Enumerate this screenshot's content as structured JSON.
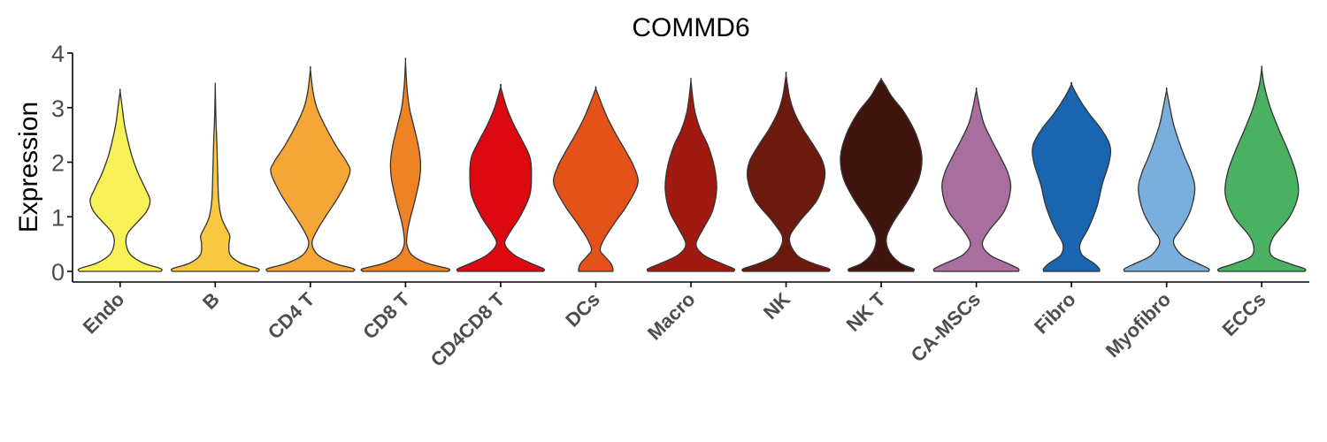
{
  "chart_data": {
    "type": "violin",
    "title": "COMMD6",
    "xlabel": "",
    "ylabel": "Expression",
    "ylim": [
      -0.2,
      4.05
    ],
    "yticks": [
      0,
      1,
      2,
      3,
      4
    ],
    "grid": false,
    "legend": "none",
    "categories": [
      "Endo",
      "B",
      "CD4 T",
      "CD8 T",
      "CD4CD8 T",
      "DCs",
      "Macro",
      "NK",
      "NK T",
      "CA-MSCs",
      "Fibro",
      "Myofibro",
      "ECCs"
    ],
    "series": [
      {
        "category": "Endo",
        "color": "#F8F057",
        "max": 3.3,
        "profile": [
          [
            0,
            0.95
          ],
          [
            0.05,
            0.95
          ],
          [
            0.15,
            0.55
          ],
          [
            0.3,
            0.25
          ],
          [
            0.5,
            0.14
          ],
          [
            0.7,
            0.18
          ],
          [
            0.9,
            0.4
          ],
          [
            1.1,
            0.62
          ],
          [
            1.3,
            0.7
          ],
          [
            1.5,
            0.6
          ],
          [
            1.8,
            0.42
          ],
          [
            2.1,
            0.28
          ],
          [
            2.4,
            0.18
          ],
          [
            2.7,
            0.1
          ],
          [
            3.0,
            0.05
          ],
          [
            3.3,
            0
          ]
        ]
      },
      {
        "category": "B",
        "color": "#F7C840",
        "max": 3.4,
        "profile": [
          [
            0,
            1.0
          ],
          [
            0.05,
            1.0
          ],
          [
            0.15,
            0.6
          ],
          [
            0.3,
            0.35
          ],
          [
            0.5,
            0.32
          ],
          [
            0.65,
            0.34
          ],
          [
            0.8,
            0.25
          ],
          [
            1.0,
            0.14
          ],
          [
            1.3,
            0.08
          ],
          [
            1.7,
            0.06
          ],
          [
            2.0,
            0.05
          ],
          [
            2.3,
            0.04
          ],
          [
            2.7,
            0.02
          ],
          [
            3.0,
            0.01
          ],
          [
            3.4,
            0
          ]
        ]
      },
      {
        "category": "CD4 T",
        "color": "#F4A736",
        "max": 3.7,
        "profile": [
          [
            0,
            1.0
          ],
          [
            0.05,
            1.0
          ],
          [
            0.15,
            0.55
          ],
          [
            0.3,
            0.18
          ],
          [
            0.5,
            0.04
          ],
          [
            0.7,
            0.12
          ],
          [
            1.0,
            0.35
          ],
          [
            1.4,
            0.68
          ],
          [
            1.8,
            0.92
          ],
          [
            2.0,
            0.85
          ],
          [
            2.3,
            0.6
          ],
          [
            2.7,
            0.32
          ],
          [
            3.0,
            0.15
          ],
          [
            3.3,
            0.06
          ],
          [
            3.7,
            0
          ]
        ]
      },
      {
        "category": "CD8 T",
        "color": "#EE8326",
        "max": 3.85,
        "profile": [
          [
            0,
            1.0
          ],
          [
            0.05,
            1.0
          ],
          [
            0.15,
            0.5
          ],
          [
            0.3,
            0.15
          ],
          [
            0.5,
            0.03
          ],
          [
            0.75,
            0.05
          ],
          [
            1.0,
            0.12
          ],
          [
            1.3,
            0.22
          ],
          [
            1.7,
            0.33
          ],
          [
            2.0,
            0.35
          ],
          [
            2.3,
            0.3
          ],
          [
            2.7,
            0.18
          ],
          [
            3.0,
            0.09
          ],
          [
            3.4,
            0.03
          ],
          [
            3.85,
            0
          ]
        ]
      },
      {
        "category": "CD4CD8 T",
        "color": "#DC0A10",
        "max": 3.38,
        "profile": [
          [
            0,
            1.0
          ],
          [
            0.05,
            1.0
          ],
          [
            0.15,
            0.7
          ],
          [
            0.3,
            0.32
          ],
          [
            0.5,
            0.1
          ],
          [
            0.7,
            0.2
          ],
          [
            1.0,
            0.45
          ],
          [
            1.4,
            0.68
          ],
          [
            1.8,
            0.72
          ],
          [
            2.1,
            0.68
          ],
          [
            2.4,
            0.5
          ],
          [
            2.7,
            0.3
          ],
          [
            3.0,
            0.14
          ],
          [
            3.38,
            0
          ]
        ]
      },
      {
        "category": "DCs",
        "color": "#E35219",
        "max": 3.35,
        "profile": [
          [
            0,
            0.4
          ],
          [
            0.05,
            0.4
          ],
          [
            0.15,
            0.35
          ],
          [
            0.3,
            0.18
          ],
          [
            0.4,
            0.1
          ],
          [
            0.6,
            0.2
          ],
          [
            0.9,
            0.45
          ],
          [
            1.2,
            0.72
          ],
          [
            1.6,
            0.98
          ],
          [
            1.9,
            0.9
          ],
          [
            2.2,
            0.7
          ],
          [
            2.5,
            0.48
          ],
          [
            2.8,
            0.28
          ],
          [
            3.1,
            0.12
          ],
          [
            3.35,
            0
          ]
        ]
      },
      {
        "category": "Macro",
        "color": "#A11A12",
        "max": 3.5,
        "profile": [
          [
            0,
            1.0
          ],
          [
            0.05,
            1.0
          ],
          [
            0.15,
            0.7
          ],
          [
            0.3,
            0.3
          ],
          [
            0.5,
            0.12
          ],
          [
            0.8,
            0.3
          ],
          [
            1.1,
            0.5
          ],
          [
            1.5,
            0.6
          ],
          [
            1.9,
            0.55
          ],
          [
            2.3,
            0.4
          ],
          [
            2.6,
            0.22
          ],
          [
            2.9,
            0.1
          ],
          [
            3.2,
            0.04
          ],
          [
            3.5,
            0
          ]
        ]
      },
      {
        "category": "NK",
        "color": "#6C1A0E",
        "max": 3.6,
        "profile": [
          [
            0,
            1.0
          ],
          [
            0.05,
            1.0
          ],
          [
            0.15,
            0.62
          ],
          [
            0.3,
            0.25
          ],
          [
            0.6,
            0.08
          ],
          [
            0.9,
            0.3
          ],
          [
            1.3,
            0.72
          ],
          [
            1.7,
            0.9
          ],
          [
            2.0,
            0.86
          ],
          [
            2.3,
            0.65
          ],
          [
            2.6,
            0.4
          ],
          [
            2.9,
            0.2
          ],
          [
            3.2,
            0.08
          ],
          [
            3.6,
            0
          ]
        ]
      },
      {
        "category": "NK T",
        "color": "#40150D",
        "max": 3.52,
        "profile": [
          [
            0,
            0.75
          ],
          [
            0.05,
            0.75
          ],
          [
            0.15,
            0.45
          ],
          [
            0.35,
            0.2
          ],
          [
            0.6,
            0.12
          ],
          [
            0.9,
            0.28
          ],
          [
            1.3,
            0.62
          ],
          [
            1.7,
            0.88
          ],
          [
            2.1,
            0.95
          ],
          [
            2.5,
            0.82
          ],
          [
            2.9,
            0.55
          ],
          [
            3.2,
            0.25
          ],
          [
            3.4,
            0.1
          ],
          [
            3.52,
            0
          ]
        ]
      },
      {
        "category": "CA-MSCs",
        "color": "#A86F9E",
        "max": 3.32,
        "profile": [
          [
            0,
            0.98
          ],
          [
            0.05,
            0.98
          ],
          [
            0.15,
            0.72
          ],
          [
            0.3,
            0.32
          ],
          [
            0.5,
            0.14
          ],
          [
            0.75,
            0.3
          ],
          [
            1.1,
            0.65
          ],
          [
            1.5,
            0.8
          ],
          [
            1.8,
            0.74
          ],
          [
            2.1,
            0.56
          ],
          [
            2.4,
            0.36
          ],
          [
            2.7,
            0.18
          ],
          [
            3.0,
            0.08
          ],
          [
            3.32,
            0
          ]
        ]
      },
      {
        "category": "Fibro",
        "color": "#1A65B0",
        "max": 3.43,
        "profile": [
          [
            0,
            0.65
          ],
          [
            0.05,
            0.65
          ],
          [
            0.15,
            0.52
          ],
          [
            0.3,
            0.25
          ],
          [
            0.5,
            0.2
          ],
          [
            0.8,
            0.4
          ],
          [
            1.2,
            0.6
          ],
          [
            1.6,
            0.72
          ],
          [
            2.0,
            0.88
          ],
          [
            2.3,
            0.9
          ],
          [
            2.6,
            0.7
          ],
          [
            2.9,
            0.4
          ],
          [
            3.2,
            0.15
          ],
          [
            3.43,
            0
          ]
        ]
      },
      {
        "category": "Myofibro",
        "color": "#7AAEDC",
        "max": 3.32,
        "profile": [
          [
            0,
            0.98
          ],
          [
            0.05,
            0.98
          ],
          [
            0.15,
            0.72
          ],
          [
            0.3,
            0.35
          ],
          [
            0.55,
            0.16
          ],
          [
            0.8,
            0.35
          ],
          [
            1.1,
            0.55
          ],
          [
            1.5,
            0.66
          ],
          [
            1.8,
            0.58
          ],
          [
            2.1,
            0.42
          ],
          [
            2.4,
            0.28
          ],
          [
            2.7,
            0.16
          ],
          [
            3.0,
            0.08
          ],
          [
            3.32,
            0
          ]
        ]
      },
      {
        "category": "ECCs",
        "color": "#4BB162",
        "max": 3.72,
        "profile": [
          [
            0,
            1.0
          ],
          [
            0.05,
            1.0
          ],
          [
            0.15,
            0.62
          ],
          [
            0.3,
            0.22
          ],
          [
            0.6,
            0.25
          ],
          [
            1.0,
            0.65
          ],
          [
            1.4,
            0.85
          ],
          [
            1.8,
            0.8
          ],
          [
            2.2,
            0.62
          ],
          [
            2.6,
            0.4
          ],
          [
            3.0,
            0.2
          ],
          [
            3.4,
            0.06
          ],
          [
            3.72,
            0
          ]
        ]
      }
    ]
  }
}
